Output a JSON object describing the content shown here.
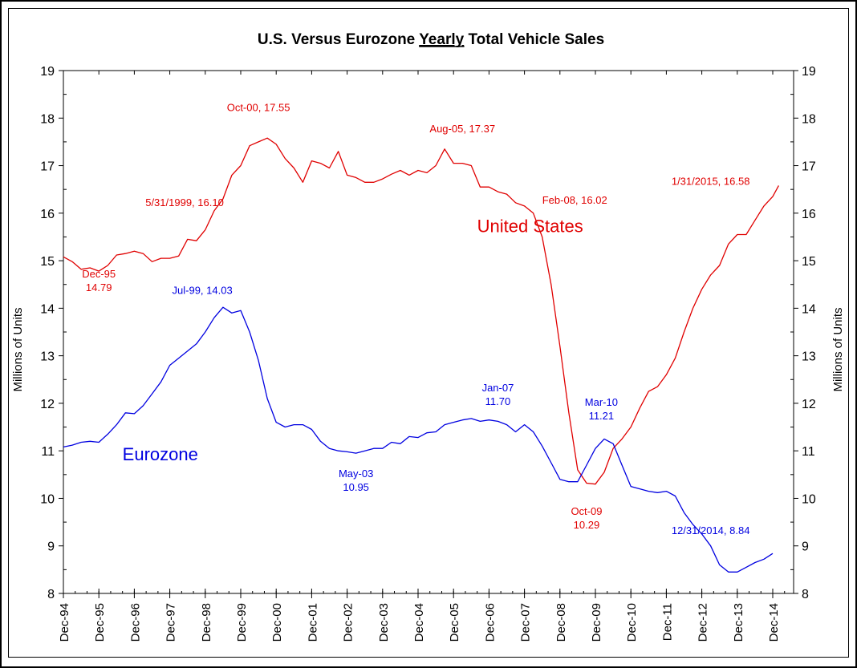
{
  "chart_data": {
    "type": "line",
    "title_parts": [
      "U.S. Versus Eurozone ",
      "Yearly",
      " Total Vehicle Sales"
    ],
    "title": "U.S. Versus Eurozone Yearly Total Vehicle Sales",
    "ylabel": "Millions of Units",
    "ylabel_right": "Millions of Units",
    "xlabel": "",
    "ylim": [
      8,
      19
    ],
    "yticks": [
      "8",
      "9",
      "10",
      "11",
      "12",
      "13",
      "14",
      "15",
      "16",
      "17",
      "18",
      "19"
    ],
    "xticks": [
      "Dec-94",
      "Dec-95",
      "Dec-96",
      "Dec-97",
      "Dec-98",
      "Dec-99",
      "Dec-00",
      "Dec-01",
      "Dec-02",
      "Dec-03",
      "Dec-04",
      "Dec-05",
      "Dec-06",
      "Dec-07",
      "Dec-08",
      "Dec-09",
      "Dec-10",
      "Dec-11",
      "Dec-12",
      "Dec-13",
      "Dec-14"
    ],
    "x_unit": "months since Dec-94 (quarterly samples)",
    "grid": false,
    "series": [
      {
        "name": "United States",
        "color": "#e00000",
        "x": [
          0,
          3,
          6,
          9,
          12,
          15,
          18,
          21,
          24,
          27,
          30,
          33,
          36,
          39,
          42,
          45,
          48,
          51,
          54,
          57,
          60,
          63,
          66,
          69,
          72,
          75,
          78,
          81,
          84,
          87,
          90,
          93,
          96,
          99,
          102,
          105,
          108,
          111,
          114,
          117,
          120,
          123,
          126,
          129,
          132,
          135,
          138,
          141,
          144,
          147,
          150,
          153,
          156,
          159,
          162,
          165,
          168,
          171,
          174,
          177,
          180,
          183,
          186,
          189,
          192,
          195,
          198,
          201,
          204,
          207,
          210,
          213,
          216,
          219,
          222,
          225,
          228,
          231,
          234,
          237,
          240,
          242
        ],
        "values": [
          15.08,
          14.98,
          14.82,
          14.85,
          14.78,
          14.9,
          15.12,
          15.15,
          15.2,
          15.15,
          14.98,
          15.05,
          15.05,
          15.1,
          15.45,
          15.42,
          15.65,
          16.05,
          16.3,
          16.8,
          17.0,
          17.42,
          17.5,
          17.58,
          17.45,
          17.15,
          16.95,
          16.65,
          17.1,
          17.05,
          16.95,
          17.3,
          16.8,
          16.75,
          16.65,
          16.65,
          16.72,
          16.82,
          16.9,
          16.8,
          16.9,
          16.85,
          17.0,
          17.35,
          17.05,
          17.05,
          17.0,
          16.55,
          16.55,
          16.45,
          16.4,
          16.22,
          16.15,
          16.0,
          15.5,
          14.5,
          13.2,
          11.8,
          10.6,
          10.32,
          10.3,
          10.55,
          11.05,
          11.25,
          11.5,
          11.9,
          12.25,
          12.35,
          12.6,
          12.95,
          13.5,
          14.0,
          14.4,
          14.7,
          14.9,
          15.35,
          15.55,
          15.55,
          15.85,
          16.15,
          16.35,
          16.58
        ]
      },
      {
        "name": "Eurozone",
        "color": "#0000e0",
        "x": [
          0,
          3,
          6,
          9,
          12,
          15,
          18,
          21,
          24,
          27,
          30,
          33,
          36,
          39,
          42,
          45,
          48,
          51,
          54,
          57,
          60,
          63,
          66,
          69,
          72,
          75,
          78,
          81,
          84,
          87,
          90,
          93,
          96,
          99,
          102,
          105,
          108,
          111,
          114,
          117,
          120,
          123,
          126,
          129,
          132,
          135,
          138,
          141,
          144,
          147,
          150,
          153,
          156,
          159,
          162,
          165,
          168,
          171,
          174,
          177,
          180,
          183,
          186,
          189,
          192,
          195,
          198,
          201,
          204,
          207,
          210,
          213,
          216,
          219,
          222,
          225,
          228,
          231,
          234,
          237,
          240
        ],
        "values": [
          11.08,
          11.12,
          11.18,
          11.2,
          11.18,
          11.35,
          11.55,
          11.8,
          11.78,
          11.95,
          12.2,
          12.45,
          12.8,
          12.95,
          13.1,
          13.25,
          13.5,
          13.8,
          14.02,
          13.9,
          13.95,
          13.5,
          12.9,
          12.1,
          11.6,
          11.5,
          11.55,
          11.55,
          11.45,
          11.2,
          11.05,
          11.0,
          10.98,
          10.95,
          11.0,
          11.05,
          11.05,
          11.18,
          11.15,
          11.3,
          11.28,
          11.38,
          11.4,
          11.55,
          11.6,
          11.65,
          11.68,
          11.62,
          11.65,
          11.62,
          11.55,
          11.4,
          11.55,
          11.4,
          11.1,
          10.75,
          10.4,
          10.35,
          10.35,
          10.7,
          11.05,
          11.25,
          11.15,
          10.7,
          10.25,
          10.2,
          10.15,
          10.12,
          10.15,
          10.05,
          9.7,
          9.45,
          9.25,
          9.0,
          8.6,
          8.45,
          8.45,
          8.55,
          8.65,
          8.72,
          8.84
        ]
      }
    ],
    "series_labels": [
      {
        "text": "United States",
        "color": "#e00000",
        "x": 140,
        "y": 15.6
      },
      {
        "text": "Eurozone",
        "color": "#0000e0",
        "x": 20,
        "y": 10.8
      }
    ],
    "annotations": [
      {
        "lines": [
          "Oct-00, 17.55"
        ],
        "color": "#e00000",
        "x": 66,
        "y": 18.15
      },
      {
        "lines": [
          "5/31/1999, 16.10"
        ],
        "color": "#e00000",
        "x": 41,
        "y": 16.15
      },
      {
        "lines": [
          "Dec-95",
          "14.79"
        ],
        "color": "#e00000",
        "x": 12,
        "y": 14.65
      },
      {
        "lines": [
          "Aug-05, 17.37"
        ],
        "color": "#e00000",
        "x": 135,
        "y": 17.7
      },
      {
        "lines": [
          "Feb-08, 16.02"
        ],
        "color": "#e00000",
        "x": 173,
        "y": 16.2
      },
      {
        "lines": [
          "Oct-09",
          "10.29"
        ],
        "color": "#e00000",
        "x": 177,
        "y": 9.65
      },
      {
        "lines": [
          "1/31/2015, 16.58"
        ],
        "color": "#e00000",
        "x": 219,
        "y": 16.6
      },
      {
        "lines": [
          "Jul-99, 14.03"
        ],
        "color": "#0000e0",
        "x": 47,
        "y": 14.3
      },
      {
        "lines": [
          "May-03",
          "10.95"
        ],
        "color": "#0000e0",
        "x": 99,
        "y": 10.45
      },
      {
        "lines": [
          "Jan-07",
          "11.70"
        ],
        "color": "#0000e0",
        "x": 147,
        "y": 12.25
      },
      {
        "lines": [
          "Mar-10",
          "11.21"
        ],
        "color": "#0000e0",
        "x": 182,
        "y": 11.95
      },
      {
        "lines": [
          "12/31/2014, 8.84"
        ],
        "color": "#0000e0",
        "x": 219,
        "y": 9.25
      }
    ]
  }
}
